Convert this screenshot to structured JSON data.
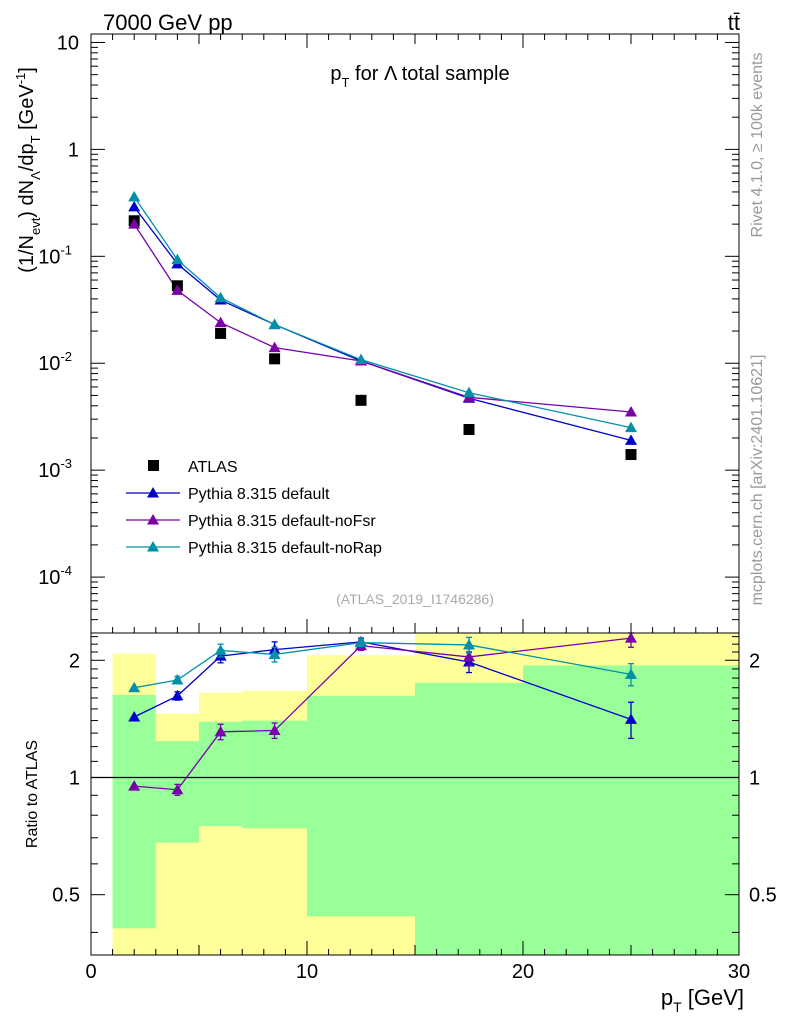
{
  "header": {
    "left": "7000 GeV pp",
    "right": "tt̄"
  },
  "side_labels": {
    "top": "Rivet 4.1.0, ≥ 100k events",
    "bottom": "mcplots.cern.ch [arXiv:2401.10621]"
  },
  "colors": {
    "atlas": "#000000",
    "default": "#0000cc",
    "noFsr": "#7a00aa",
    "noRap": "#0090a8",
    "band_green": "#99ff99",
    "band_yellow": "#ffff99"
  },
  "chart_data": [
    {
      "type": "scatter",
      "scale": "log",
      "title": "p_T for Λ total sample",
      "watermark": "(ATLAS_2019_I1746286)",
      "ylabel": "(1/N_evt) dN_Λ/dp_T [GeV^-1]",
      "xlim": [
        0,
        30
      ],
      "ylim": [
        3e-05,
        12
      ],
      "y_ticks": [
        {
          "value": 10,
          "label": "10"
        },
        {
          "value": 1,
          "label": "1"
        },
        {
          "value": 0.1,
          "label": "10^-1"
        },
        {
          "value": 0.01,
          "label": "10^-2"
        },
        {
          "value": 0.001,
          "label": "10^-3"
        },
        {
          "value": 0.0001,
          "label": "10^-4"
        }
      ],
      "x": [
        2,
        4,
        6,
        8.5,
        12.5,
        17.5,
        25
      ],
      "series": [
        {
          "key": "atlas",
          "name": "ATLAS",
          "marker": "square",
          "values": [
            0.215,
            0.053,
            0.019,
            0.011,
            0.0045,
            0.0024,
            0.0014
          ]
        },
        {
          "key": "default",
          "name": "Pythia 8.315 default",
          "marker": "triangle",
          "values": [
            0.29,
            0.085,
            0.039,
            0.023,
            0.0105,
            0.0047,
            0.0019
          ]
        },
        {
          "key": "noFsr",
          "name": "Pythia 8.315 default-noFsr",
          "marker": "triangle",
          "values": [
            0.2,
            0.048,
            0.024,
            0.014,
            0.0105,
            0.0048,
            0.0035
          ]
        },
        {
          "key": "noRap",
          "name": "Pythia 8.315 default-noRap",
          "marker": "triangle",
          "values": [
            0.36,
            0.093,
            0.041,
            0.023,
            0.0108,
            0.0053,
            0.0025
          ]
        }
      ]
    },
    {
      "type": "line",
      "scale": "log",
      "ylabel": "Ratio to ATLAS",
      "xlabel": "p_T [GeV]",
      "xlim": [
        0,
        30
      ],
      "ylim": [
        0.35,
        2.35
      ],
      "reference": 1,
      "x_ticks": [
        0,
        10,
        20,
        30
      ],
      "y_ticks": [
        {
          "value": 0.5,
          "label": "0.5"
        },
        {
          "value": 1,
          "label": "1"
        },
        {
          "value": 2,
          "label": "2"
        }
      ],
      "bands": [
        {
          "x0": 1,
          "x1": 3,
          "green": [
            0.41,
            1.63
          ],
          "yellow": [
            0.35,
            2.08
          ]
        },
        {
          "x0": 3,
          "x1": 5,
          "green": [
            0.68,
            1.24
          ],
          "yellow": [
            0.35,
            1.46
          ]
        },
        {
          "x0": 5,
          "x1": 7,
          "green": [
            0.75,
            1.39
          ],
          "yellow": [
            0.35,
            1.65
          ]
        },
        {
          "x0": 7,
          "x1": 10,
          "green": [
            0.74,
            1.4
          ],
          "yellow": [
            0.35,
            1.67
          ]
        },
        {
          "x0": 10,
          "x1": 15,
          "green": [
            0.44,
            1.62
          ],
          "yellow": [
            0.35,
            2.06
          ]
        },
        {
          "x0": 15,
          "x1": 20,
          "green": [
            0.35,
            1.75
          ],
          "yellow": [
            0.35,
            2.35
          ]
        },
        {
          "x0": 20,
          "x1": 30,
          "green": [
            0.35,
            1.94
          ],
          "yellow": [
            0.35,
            2.35
          ]
        }
      ],
      "x": [
        2,
        4,
        6,
        8.5,
        12.5,
        17.5,
        25
      ],
      "series": [
        {
          "key": "default",
          "name": "Pythia 8.315 default",
          "values": [
            1.43,
            1.62,
            2.05,
            2.13,
            2.23,
            1.98,
            1.41
          ],
          "errors": [
            0,
            0.04,
            0.08,
            0.1,
            0.05,
            0.12,
            0.15
          ]
        },
        {
          "key": "noFsr",
          "name": "Pythia 8.315 default-noFsr",
          "values": [
            0.95,
            0.93,
            1.31,
            1.32,
            2.18,
            2.04,
            2.28
          ],
          "errors": [
            0,
            0.03,
            0.06,
            0.06,
            0.06,
            0.1,
            0.12
          ]
        },
        {
          "key": "noRap",
          "name": "Pythia 8.315 default-noRap",
          "values": [
            1.7,
            1.78,
            2.12,
            2.07,
            2.22,
            2.19,
            1.84
          ],
          "errors": [
            0,
            0.04,
            0.08,
            0.09,
            0.05,
            0.1,
            0.12
          ]
        }
      ]
    }
  ]
}
